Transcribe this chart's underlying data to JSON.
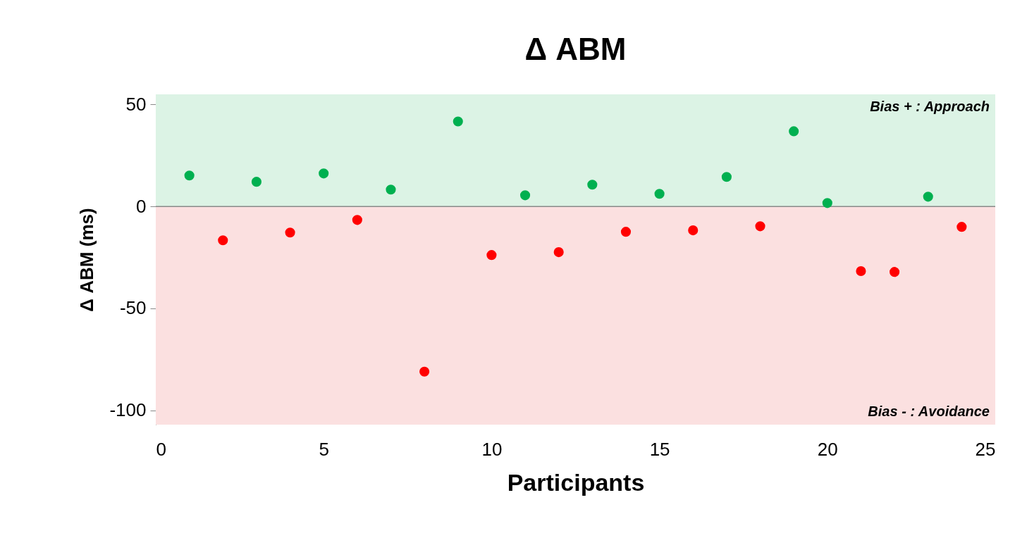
{
  "chart_data": {
    "type": "scatter",
    "title": "Δ ABM",
    "xlabel": "Participants",
    "ylabel": "Δ ABM (ms)",
    "xlim": [
      0,
      25
    ],
    "xticks": [
      0,
      5,
      10,
      15,
      20,
      25
    ],
    "ylim": [
      -107,
      55
    ],
    "yticks": [
      -100,
      -50,
      0,
      50
    ],
    "grid": false,
    "marker": "circle",
    "series": [
      {
        "color": "#00b050",
        "x": [
          1,
          3,
          5,
          7,
          9,
          11,
          13,
          15,
          17,
          19,
          20,
          23
        ],
        "values": [
          15.2,
          12.1,
          16.2,
          8.3,
          41.7,
          5.5,
          10.7,
          6.2,
          14.5,
          36.9,
          1.7,
          4.8
        ]
      },
      {
        "color": "#ff0000",
        "x": [
          2,
          4,
          6,
          8,
          10,
          12,
          14,
          16,
          18,
          21,
          22,
          24
        ],
        "values": [
          -16.6,
          -12.8,
          -6.6,
          -81,
          -23.8,
          -22.4,
          -12.4,
          -11.7,
          -9.7,
          -31.7,
          -32.1,
          -10
        ]
      }
    ],
    "bands": [
      {
        "axis": "y",
        "from": 0,
        "to": 55,
        "label": "Bias + : Approach",
        "color": "#dcf3e5"
      },
      {
        "axis": "y",
        "from": -107,
        "to": 0,
        "label": "Bias - : Avoidance",
        "color": "#fbe0e0"
      }
    ],
    "ref_lines": [
      {
        "axis": "y",
        "value": 0,
        "color": "#888888"
      }
    ]
  }
}
